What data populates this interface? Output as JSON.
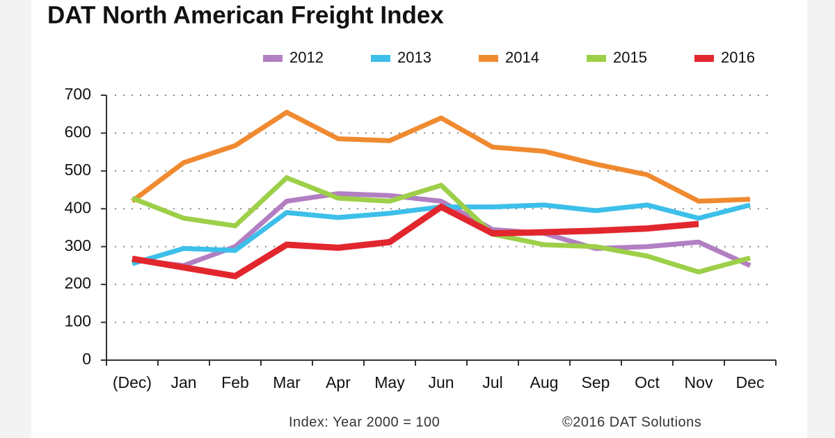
{
  "chart_data": {
    "type": "line",
    "title": "DAT North American Freight Index",
    "categories": [
      "(Dec)",
      "Jan",
      "Feb",
      "Mar",
      "Apr",
      "May",
      "Jun",
      "Jul",
      "Aug",
      "Sep",
      "Oct",
      "Nov",
      "Dec"
    ],
    "series": [
      {
        "name": "2012",
        "color": "#b27fc2",
        "values": [
          265,
          250,
          300,
          420,
          440,
          435,
          420,
          345,
          335,
          295,
          300,
          312,
          250
        ]
      },
      {
        "name": "2013",
        "color": "#3cbfe9",
        "values": [
          255,
          295,
          290,
          390,
          377,
          388,
          405,
          405,
          410,
          395,
          410,
          375,
          410
        ]
      },
      {
        "name": "2014",
        "color": "#f08a30",
        "values": [
          420,
          522,
          567,
          655,
          585,
          580,
          640,
          563,
          552,
          518,
          490,
          420,
          425
        ]
      },
      {
        "name": "2015",
        "color": "#9dcf48",
        "values": [
          428,
          375,
          355,
          482,
          428,
          420,
          462,
          333,
          305,
          300,
          275,
          233,
          270
        ]
      },
      {
        "name": "2016",
        "color": "#e2262e",
        "values": [
          268,
          245,
          222,
          305,
          297,
          312,
          405,
          335,
          338,
          342,
          348,
          360,
          null
        ]
      }
    ],
    "ylim": [
      0,
      700
    ],
    "yticks": [
      0,
      100,
      200,
      300,
      400,
      500,
      600,
      700
    ],
    "grid": true,
    "legend": "top-right",
    "note": "Index: Year 2000 = 100",
    "source": "©2016 DAT Solutions"
  }
}
